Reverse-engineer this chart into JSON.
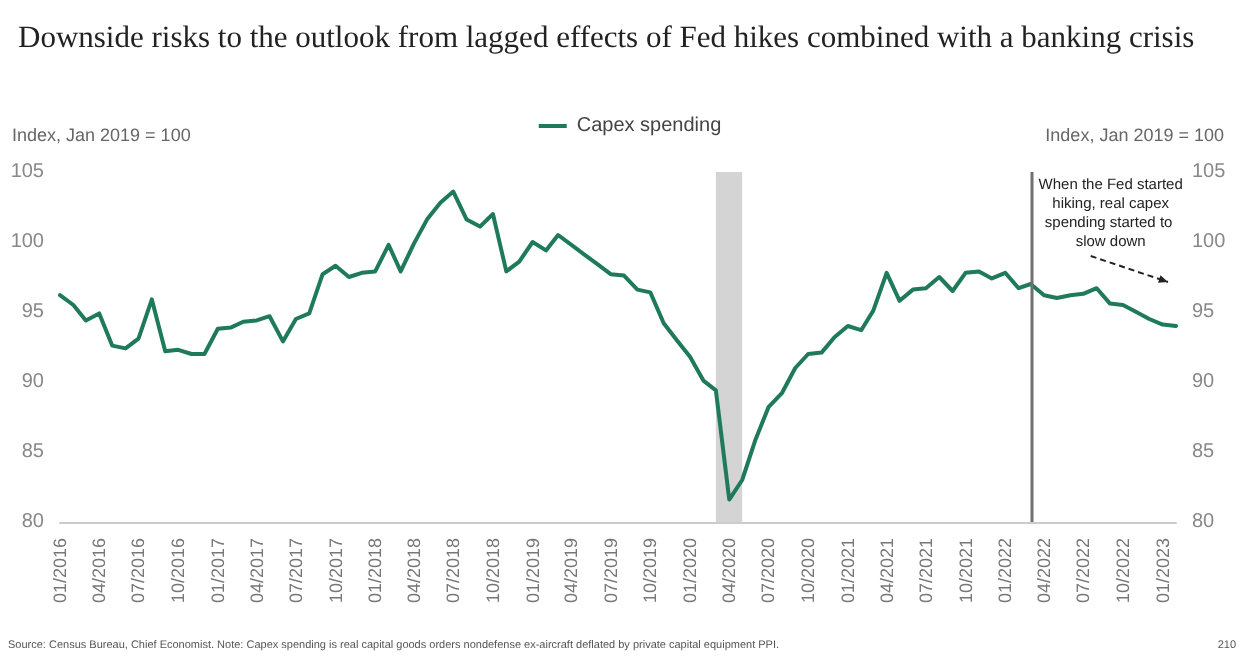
{
  "chart_data": {
    "type": "line",
    "title": "Downside risks to the outlook from lagged effects of Fed hikes combined with a banking crisis",
    "ylabel": "Index, Jan 2019 = 100",
    "y2label": "Index, Jan 2019 = 100",
    "x": [
      "2016-01",
      "2016-02",
      "2016-03",
      "2016-04",
      "2016-05",
      "2016-06",
      "2016-07",
      "2016-08",
      "2016-09",
      "2016-10",
      "2016-11",
      "2016-12",
      "2017-01",
      "2017-02",
      "2017-03",
      "2017-04",
      "2017-05",
      "2017-06",
      "2017-07",
      "2017-08",
      "2017-09",
      "2017-10",
      "2017-11",
      "2017-12",
      "2018-01",
      "2018-02",
      "2018-03",
      "2018-04",
      "2018-05",
      "2018-06",
      "2018-07",
      "2018-08",
      "2018-09",
      "2018-10",
      "2018-11",
      "2018-12",
      "2019-01",
      "2019-02",
      "2019-03",
      "2019-04",
      "2019-05",
      "2019-06",
      "2019-07",
      "2019-08",
      "2019-09",
      "2019-10",
      "2019-11",
      "2019-12",
      "2020-01",
      "2020-02",
      "2020-03",
      "2020-04",
      "2020-05",
      "2020-06",
      "2020-07",
      "2020-08",
      "2020-09",
      "2020-10",
      "2020-11",
      "2020-12",
      "2021-01",
      "2021-02",
      "2021-03",
      "2021-04",
      "2021-05",
      "2021-06",
      "2021-07",
      "2021-08",
      "2021-09",
      "2021-10",
      "2021-11",
      "2021-12",
      "2022-01",
      "2022-02",
      "2022-03",
      "2022-04",
      "2022-05",
      "2022-06",
      "2022-07",
      "2022-08",
      "2022-09",
      "2022-10",
      "2022-11",
      "2022-12",
      "2023-01",
      "2023-02"
    ],
    "series": [
      {
        "name": "Capex spending",
        "color": "#1f7a5c",
        "values": [
          96.2,
          95.5,
          94.4,
          94.9,
          92.6,
          92.4,
          93.1,
          95.9,
          92.2,
          92.3,
          92.0,
          92.0,
          93.8,
          93.9,
          94.3,
          94.4,
          94.7,
          92.9,
          94.5,
          94.9,
          97.7,
          98.3,
          97.5,
          97.8,
          97.9,
          99.8,
          97.9,
          99.9,
          101.6,
          102.8,
          103.6,
          101.6,
          101.1,
          102.0,
          97.9,
          98.6,
          100.0,
          99.4,
          100.5,
          99.8,
          99.1,
          98.4,
          97.7,
          97.6,
          96.6,
          96.4,
          94.2,
          93.0,
          91.8,
          90.1,
          89.4,
          81.6,
          83.0,
          85.9,
          88.2,
          89.2,
          91.0,
          92.0,
          92.1,
          93.2,
          94.0,
          93.7,
          95.1,
          97.8,
          95.8,
          96.6,
          96.7,
          97.5,
          96.5,
          97.8,
          97.9,
          97.4,
          97.8,
          96.7,
          97.0,
          96.2,
          96.0,
          96.2,
          96.3,
          96.7,
          95.6,
          95.5,
          95.0,
          94.5,
          94.1,
          94.0
        ]
      }
    ],
    "xlim": [
      "2016-01",
      "2023-02"
    ],
    "xticks": [
      {
        "value": "2016-01",
        "label": "01/2016"
      },
      {
        "value": "2016-04",
        "label": "04/2016"
      },
      {
        "value": "2016-07",
        "label": "07/2016"
      },
      {
        "value": "2016-10",
        "label": "10/2016"
      },
      {
        "value": "2017-01",
        "label": "01/2017"
      },
      {
        "value": "2017-04",
        "label": "04/2017"
      },
      {
        "value": "2017-07",
        "label": "07/2017"
      },
      {
        "value": "2017-10",
        "label": "10/2017"
      },
      {
        "value": "2018-01",
        "label": "01/2018"
      },
      {
        "value": "2018-04",
        "label": "04/2018"
      },
      {
        "value": "2018-07",
        "label": "07/2018"
      },
      {
        "value": "2018-10",
        "label": "10/2018"
      },
      {
        "value": "2019-01",
        "label": "01/2019"
      },
      {
        "value": "2019-04",
        "label": "04/2019"
      },
      {
        "value": "2019-07",
        "label": "07/2019"
      },
      {
        "value": "2019-10",
        "label": "10/2019"
      },
      {
        "value": "2020-01",
        "label": "01/2020"
      },
      {
        "value": "2020-04",
        "label": "04/2020"
      },
      {
        "value": "2020-07",
        "label": "07/2020"
      },
      {
        "value": "2020-10",
        "label": "10/2020"
      },
      {
        "value": "2021-01",
        "label": "01/2021"
      },
      {
        "value": "2021-04",
        "label": "04/2021"
      },
      {
        "value": "2021-07",
        "label": "07/2021"
      },
      {
        "value": "2021-10",
        "label": "10/2021"
      },
      {
        "value": "2022-01",
        "label": "01/2022"
      },
      {
        "value": "2022-04",
        "label": "04/2022"
      },
      {
        "value": "2022-07",
        "label": "07/2022"
      },
      {
        "value": "2022-10",
        "label": "10/2022"
      },
      {
        "value": "2023-01",
        "label": "01/2023"
      }
    ],
    "ylim": [
      80,
      105
    ],
    "yticks": [
      80,
      85,
      90,
      95,
      100,
      105
    ],
    "y2lim": [
      80,
      105
    ],
    "y2ticks": [
      80,
      85,
      90,
      95,
      100,
      105
    ],
    "legend": "top",
    "ref_lines": [
      {
        "axis": "x",
        "value": "2022-03",
        "color": "#707070"
      }
    ],
    "bands": [
      {
        "axis": "x",
        "from": "2020-03",
        "to": "2020-05",
        "color": "#d4d4d4"
      }
    ],
    "annotations": [
      "When the Fed started hiking, real capex spending started to slow down",
      "Source: Census Bureau, Chief Economist. Note: Capex spending is real capital goods orders nondefense ex-aircraft deflated by private capital equipment PPI.",
      "210"
    ]
  }
}
